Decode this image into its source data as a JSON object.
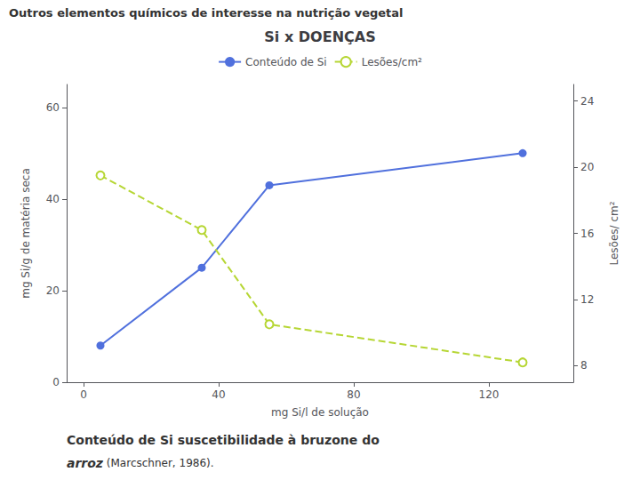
{
  "chart_data": {
    "type": "line",
    "title": "Si x DOENÇAS",
    "annotations": [
      "Outros elementos químicos de interesse na nutrição vegetal",
      "Conteúdo de Si suscetibilidade à bruzone do",
      "arroz",
      "(Marcschner, 1986)."
    ],
    "xlabel": "mg Si/l de solução",
    "ylabel": "mg Si/g de matéria seca",
    "y2label": "Lesões/ cm²",
    "x": [
      5,
      35,
      55,
      130
    ],
    "series": [
      {
        "name": "Conteúdo de Si",
        "values": [
          8,
          25,
          43,
          50
        ],
        "marker": "filled",
        "line_style": "solid"
      },
      {
        "name": "Lesões/cm²",
        "values": [
          19.5,
          16.2,
          10.5,
          8.2
        ],
        "axis": "y2",
        "marker": "open",
        "line_style": "dashed"
      }
    ],
    "xlim": [
      -5,
      145
    ],
    "xticks": [
      0,
      40,
      80,
      120
    ],
    "ylim": [
      0,
      65
    ],
    "yticks": [
      0,
      20,
      40,
      60
    ],
    "y2lim": [
      7,
      25
    ],
    "y2ticks": [
      8,
      12,
      16,
      20,
      24
    ],
    "grid": false,
    "legend": "top"
  }
}
